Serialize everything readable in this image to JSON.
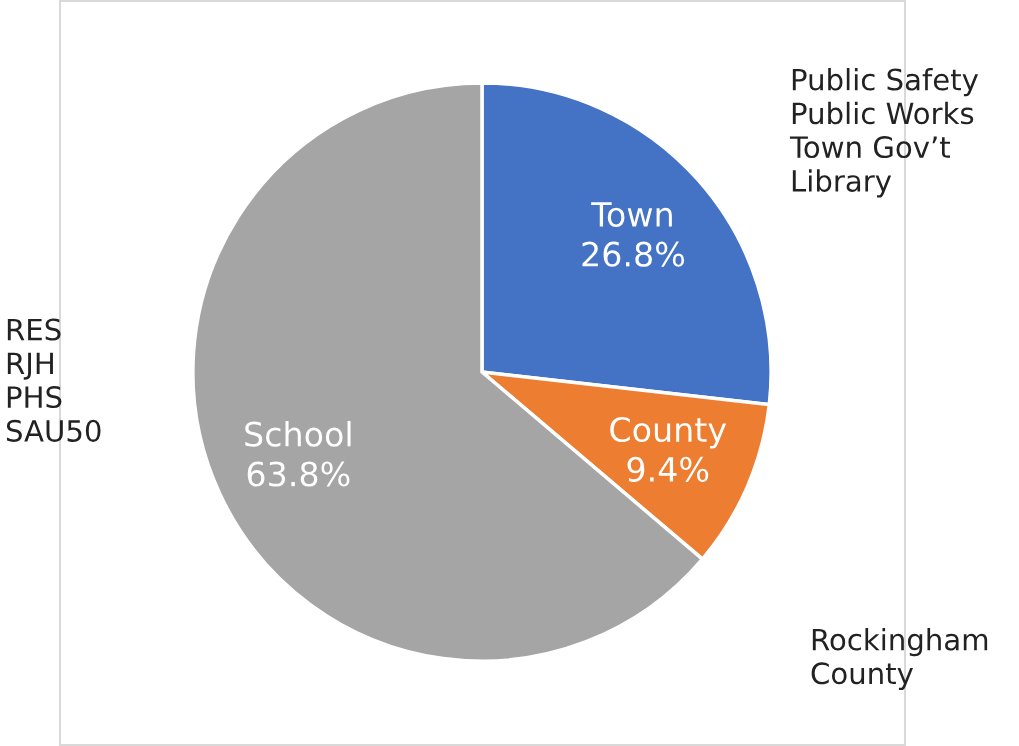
{
  "chart_data": {
    "type": "pie",
    "categories": [
      "Town",
      "County",
      "School"
    ],
    "values": [
      26.8,
      9.4,
      63.8
    ],
    "colors": [
      "#4472c4",
      "#ed7d31",
      "#a5a5a5"
    ],
    "value_labels": [
      "26.8%",
      "9.4%",
      "63.8%"
    ],
    "annotations": [
      "Public Safety\nPublic Works\nTown Gov’t\nLibrary",
      "RES\nRJH\nPHS\nSAU50",
      "Rockingham\nCounty"
    ],
    "legend": false
  }
}
